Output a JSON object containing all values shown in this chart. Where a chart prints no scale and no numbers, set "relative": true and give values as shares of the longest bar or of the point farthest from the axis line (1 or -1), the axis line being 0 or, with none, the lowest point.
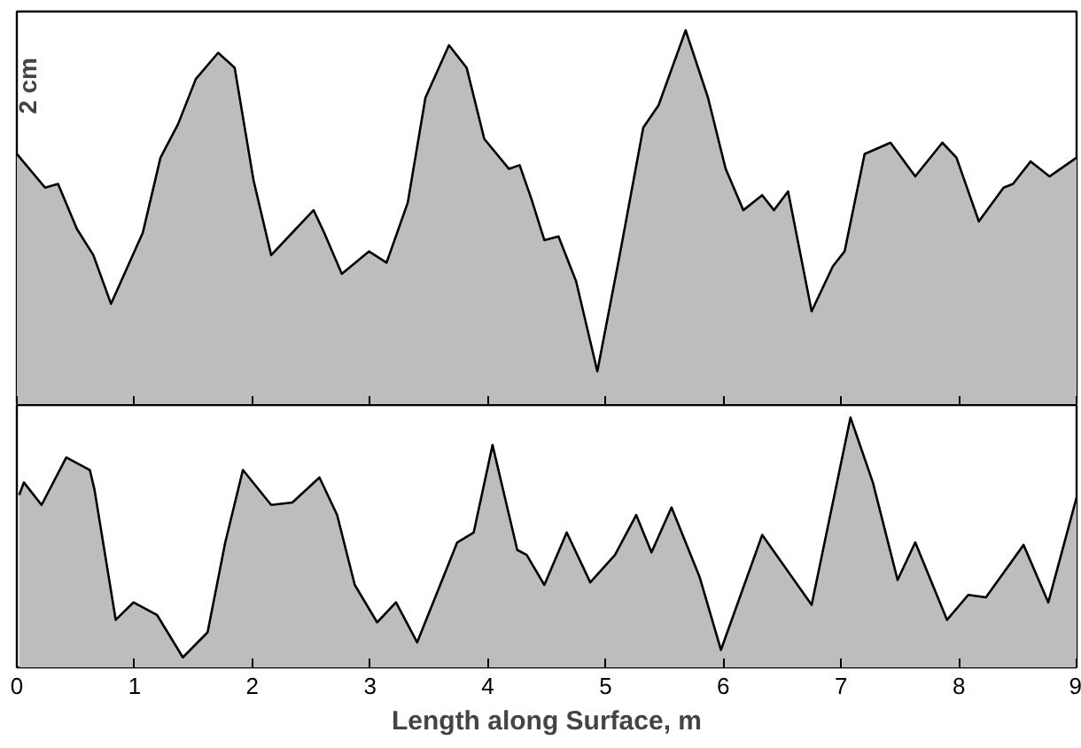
{
  "chart_data": [
    {
      "type": "area",
      "relative": true,
      "xlim": [
        0,
        9
      ],
      "xticks": [
        0,
        1,
        2,
        3,
        4,
        5,
        6,
        7,
        8,
        9
      ],
      "tick_labels": false,
      "annotations": [
        "2 cm"
      ],
      "series": [
        {
          "color": "#bdbdbd",
          "x": [
            0.0,
            0.24,
            0.35,
            0.51,
            0.65,
            0.8,
            1.07,
            1.22,
            1.37,
            1.52,
            1.71,
            1.85,
            2.01,
            2.16,
            2.37,
            2.52,
            2.61,
            2.76,
            2.99,
            3.14,
            3.32,
            3.47,
            3.67,
            3.82,
            3.97,
            4.18,
            4.27,
            4.37,
            4.48,
            4.6,
            4.75,
            4.93,
            5.12,
            5.32,
            5.45,
            5.68,
            5.87,
            6.02,
            6.17,
            6.33,
            6.43,
            6.55,
            6.75,
            6.93,
            7.03,
            7.2,
            7.42,
            7.63,
            7.86,
            7.98,
            8.17,
            8.38,
            8.46,
            8.61,
            8.77,
            9.0
          ],
          "values": [
            0.67,
            0.58,
            0.59,
            0.47,
            0.4,
            0.27,
            0.46,
            0.66,
            0.75,
            0.87,
            0.94,
            0.9,
            0.6,
            0.4,
            0.47,
            0.52,
            0.46,
            0.35,
            0.41,
            0.38,
            0.54,
            0.82,
            0.96,
            0.9,
            0.71,
            0.63,
            0.64,
            0.55,
            0.44,
            0.45,
            0.33,
            0.09,
            0.4,
            0.74,
            0.8,
            1.0,
            0.82,
            0.63,
            0.52,
            0.56,
            0.52,
            0.57,
            0.25,
            0.37,
            0.41,
            0.67,
            0.7,
            0.61,
            0.7,
            0.66,
            0.49,
            0.58,
            0.59,
            0.65,
            0.61,
            0.66
          ]
        }
      ]
    },
    {
      "type": "area",
      "relative": true,
      "xlim": [
        0,
        9
      ],
      "xticks": [
        0,
        1,
        2,
        3,
        4,
        5,
        6,
        7,
        8,
        9
      ],
      "tick_labels": "x",
      "xlabel": "Length along Surface, m",
      "series": [
        {
          "color": "#bdbdbd",
          "x": [
            0.02,
            0.06,
            0.21,
            0.42,
            0.62,
            0.66,
            0.84,
            0.99,
            1.19,
            1.41,
            1.62,
            1.77,
            1.92,
            2.16,
            2.34,
            2.57,
            2.72,
            2.87,
            3.06,
            3.22,
            3.4,
            3.74,
            3.88,
            4.04,
            4.25,
            4.33,
            4.48,
            4.67,
            4.87,
            5.08,
            5.26,
            5.39,
            5.56,
            5.8,
            5.98,
            6.33,
            6.75,
            7.08,
            7.27,
            7.48,
            7.63,
            7.9,
            8.08,
            8.23,
            8.55,
            8.76,
            9.0
          ],
          "values": [
            0.69,
            0.74,
            0.65,
            0.84,
            0.79,
            0.71,
            0.19,
            0.26,
            0.21,
            0.04,
            0.14,
            0.5,
            0.79,
            0.65,
            0.66,
            0.76,
            0.61,
            0.33,
            0.18,
            0.26,
            0.1,
            0.5,
            0.54,
            0.89,
            0.47,
            0.45,
            0.33,
            0.54,
            0.34,
            0.45,
            0.61,
            0.46,
            0.64,
            0.36,
            0.07,
            0.53,
            0.25,
            1.0,
            0.74,
            0.35,
            0.5,
            0.19,
            0.29,
            0.28,
            0.49,
            0.26,
            0.68
          ]
        }
      ]
    }
  ]
}
